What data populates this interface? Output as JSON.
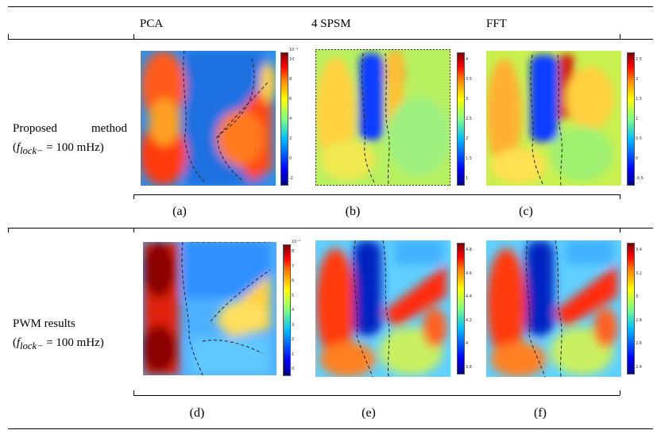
{
  "columns": [
    "PCA",
    "4 SPSM",
    "FFT"
  ],
  "rows": [
    {
      "label_line1_word1": "Proposed",
      "label_line1_word2": "method",
      "label_line2_prefix": "(",
      "label_line2_var": "f",
      "label_line2_sub": "lock−",
      "label_line2_suffix": " = 100 mHz)",
      "captions": [
        "(a)",
        "(b)",
        "(c)"
      ],
      "colorbar_ticks": [
        {
          "exp": "10⁻³",
          "ticks": [
            "10",
            "8",
            "6",
            "4",
            "2",
            "0",
            "-2"
          ]
        },
        {
          "exp": "",
          "ticks": [
            "4",
            "3.5",
            "3",
            "2.5",
            "2",
            "1.5",
            "1"
          ]
        },
        {
          "exp": "",
          "ticks": [
            "2.5",
            "2",
            "1.5",
            "1",
            "0.5",
            "0",
            "-0.5"
          ]
        }
      ]
    },
    {
      "label_line1": "PWM results",
      "label_line2_prefix": "(",
      "label_line2_var": "f",
      "label_line2_sub": "lock−",
      "label_line2_suffix": " = 100 mHz)",
      "captions": [
        "(d)",
        "(e)",
        "(f)"
      ],
      "colorbar_ticks": [
        {
          "exp": "10⁻³",
          "ticks": [
            "8",
            "7",
            "6",
            "5",
            "4",
            "3",
            "2",
            "1",
            "0"
          ]
        },
        {
          "exp": "",
          "ticks": [
            "4.8",
            "4.6",
            "4.4",
            "4.2",
            "4",
            "3.8"
          ]
        },
        {
          "exp": "",
          "ticks": [
            "3.4",
            "3.2",
            "3",
            "2.8",
            "2.6",
            "2.4"
          ]
        }
      ]
    }
  ]
}
